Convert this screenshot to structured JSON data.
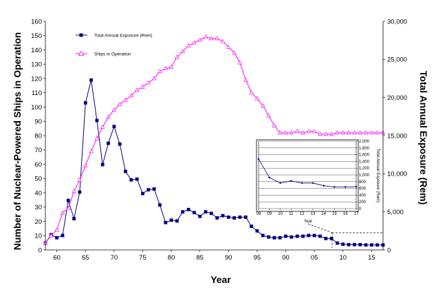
{
  "chart_data": [
    {
      "type": "line",
      "xlabel": "Year",
      "ylabel_left": "Number of Nuclear-Powered Ships in Operation",
      "ylabel_right": "Total Annual Exposure (Rem)",
      "xlim": [
        1958,
        2017
      ],
      "ylim_left": [
        0,
        160
      ],
      "ylim_right": [
        0,
        30000
      ],
      "x_ticks": [
        1960,
        1965,
        1970,
        1975,
        1980,
        1985,
        1990,
        1995,
        2000,
        2005,
        2010,
        2015
      ],
      "x_tick_labels": [
        "60",
        "65",
        "70",
        "75",
        "80",
        "85",
        "90",
        "95",
        "00",
        "05",
        "10",
        "15"
      ],
      "y_left_ticks": [
        0,
        10,
        20,
        30,
        40,
        50,
        60,
        70,
        80,
        90,
        100,
        110,
        120,
        130,
        140,
        150,
        160
      ],
      "y_right_ticks": [
        0,
        5000,
        10000,
        15000,
        20000,
        25000,
        30000
      ],
      "y_right_tick_labels": [
        "0",
        "5,000",
        "10,000",
        "15,000",
        "20,000",
        "25,000",
        "30,000"
      ],
      "grid": false,
      "legend_position": "top-left",
      "series": [
        {
          "name": "Total Annual Exposure (Rem)",
          "axis": "right",
          "color": "#000080",
          "marker": "square",
          "x": [
            1958,
            1959,
            1960,
            1961,
            1962,
            1963,
            1964,
            1965,
            1966,
            1967,
            1968,
            1969,
            1970,
            1971,
            1972,
            1973,
            1974,
            1975,
            1976,
            1977,
            1978,
            1979,
            1980,
            1981,
            1982,
            1983,
            1984,
            1985,
            1986,
            1987,
            1988,
            1989,
            1990,
            1991,
            1992,
            1993,
            1994,
            1995,
            1996,
            1997,
            1998,
            1999,
            2000,
            2001,
            2002,
            2003,
            2004,
            2005,
            2006,
            2007,
            2008,
            2009,
            2010,
            2011,
            2012,
            2013,
            2014,
            2015,
            2016,
            2017
          ],
          "y": [
            900,
            2000,
            1600,
            1900,
            6500,
            4100,
            7600,
            19300,
            22300,
            17000,
            11200,
            14000,
            16200,
            13900,
            10300,
            9200,
            9300,
            7400,
            7900,
            8000,
            5900,
            3600,
            3900,
            3800,
            5000,
            5300,
            4900,
            4400,
            5000,
            4800,
            4200,
            4500,
            4300,
            4200,
            4300,
            4300,
            3100,
            2500,
            1900,
            1700,
            1600,
            1600,
            1800,
            1700,
            1800,
            1800,
            1900,
            1900,
            1800,
            1500,
            1500,
            900,
            750,
            700,
            700,
            700,
            650,
            650,
            650,
            650
          ]
        },
        {
          "name": "Ships in Operation",
          "axis": "left",
          "color": "#ff00ff",
          "marker": "triangle-open",
          "x": [
            1958,
            1959,
            1960,
            1961,
            1962,
            1963,
            1964,
            1965,
            1966,
            1967,
            1968,
            1969,
            1970,
            1971,
            1972,
            1973,
            1974,
            1975,
            1976,
            1977,
            1978,
            1979,
            1980,
            1981,
            1982,
            1983,
            1984,
            1985,
            1986,
            1987,
            1988,
            1989,
            1990,
            1991,
            1992,
            1993,
            1994,
            1995,
            1996,
            1997,
            1998,
            1999,
            2000,
            2001,
            2002,
            2003,
            2004,
            2005,
            2006,
            2007,
            2008,
            2009,
            2010,
            2011,
            2012,
            2013,
            2014,
            2015,
            2016,
            2017
          ],
          "y": [
            5,
            10,
            14,
            26,
            29,
            41,
            49,
            59,
            69,
            78,
            86,
            93,
            98,
            102,
            105,
            108,
            112,
            114,
            117,
            120,
            125,
            127,
            128,
            135,
            139,
            143,
            145,
            147,
            149,
            148,
            148,
            146,
            142,
            138,
            131,
            119,
            110,
            106,
            101,
            94,
            87,
            82,
            82,
            82,
            83,
            82,
            83,
            83,
            81,
            81,
            81,
            82,
            82,
            82,
            82,
            82,
            82,
            82,
            82,
            82
          ]
        }
      ]
    },
    {
      "type": "line",
      "title": "",
      "xlabel": "Year",
      "ylabel": "Total Annual Exposure (Rem)",
      "xlim": [
        2008,
        2017
      ],
      "ylim": [
        0,
        2000
      ],
      "x_tick_labels": [
        "08",
        "09",
        "10",
        "11",
        "12",
        "13",
        "14",
        "15",
        "16",
        "17"
      ],
      "y_ticks": [
        0,
        200,
        400,
        600,
        800,
        1000,
        1200,
        1400,
        1600,
        1800,
        2000
      ],
      "y_tick_labels": [
        "0",
        "200",
        "400",
        "600",
        "800",
        "1,000",
        "1,200",
        "1,400",
        "1,600",
        "1,800",
        "2,000"
      ],
      "grid": true,
      "series": [
        {
          "name": "Total Annual Exposure (Rem)",
          "color": "#000080",
          "marker": "diamond-small",
          "x": [
            2008,
            2009,
            2010,
            2011,
            2012,
            2013,
            2014,
            2015,
            2016,
            2017
          ],
          "y": [
            1470,
            920,
            760,
            820,
            760,
            760,
            680,
            640,
            640,
            650
          ]
        }
      ]
    }
  ],
  "legend": {
    "items": [
      {
        "label": "Total Annual Exposure (Rem)",
        "color": "#000080",
        "marker": "square"
      },
      {
        "label": "Ships in Operation",
        "color": "#ff00ff",
        "marker": "triangle-open"
      }
    ]
  }
}
